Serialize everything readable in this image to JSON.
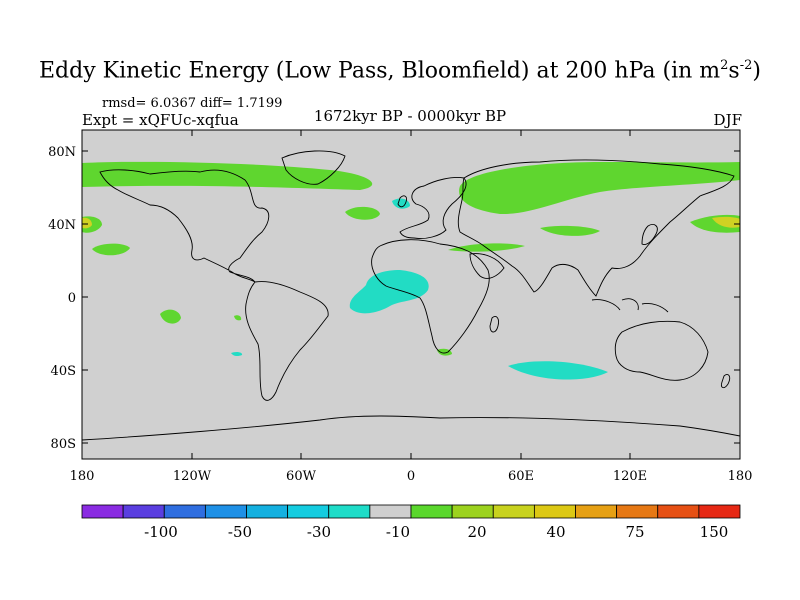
{
  "title_main": "Eddy Kinetic Energy (Low Pass, Bloomfield) at 200 hPa (in m",
  "title_sup1": "2",
  "title_mid": "s",
  "title_sup2": "-2",
  "title_end": ")",
  "stats": "rmsd= 6.0367 diff= 1.7199",
  "expt": "Expt = xQFUc-xqfua",
  "period": "1672kyr BP - 0000kyr BP",
  "season": "DJF",
  "lat_labels": [
    "80N",
    "40N",
    "0",
    "40S",
    "80S"
  ],
  "lon_labels": [
    "180",
    "120W",
    "60W",
    "0",
    "60E",
    "120E",
    "180"
  ],
  "colorbar": {
    "colors": [
      "#8a2be2",
      "#5a3ee0",
      "#2f6ee0",
      "#1e90e6",
      "#14b0e0",
      "#14cce0",
      "#1edcc8",
      "#cfcfcf",
      "#5ad72d",
      "#9cd21e",
      "#c8d21e",
      "#dcc814",
      "#e6a014",
      "#e67814",
      "#e65014",
      "#e62814"
    ],
    "labels": [
      "-100",
      "-50",
      "-30",
      "-10",
      "20",
      "40",
      "75",
      "150"
    ]
  },
  "colors": {
    "ocean": "#d0d0d0",
    "positive": "#5fd62f",
    "strong_positive": "#cfd223",
    "negative": "#22dcc4",
    "coast": "#000000"
  }
}
